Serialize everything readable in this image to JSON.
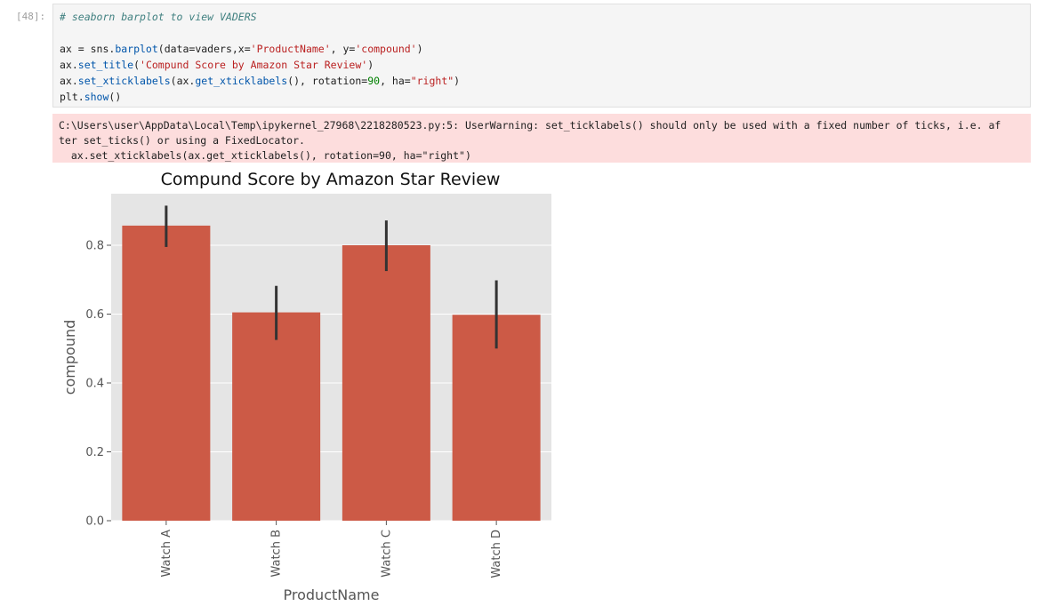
{
  "cell": {
    "prompt": "[48]:",
    "code": {
      "comment": "# seaborn barplot to view VADERS",
      "line1": [
        "ax = sns.",
        "barplot",
        "(data=vaders,x=",
        "'ProductName'",
        ", y=",
        "'compound'",
        ")"
      ],
      "line2": [
        "ax.",
        "set_title",
        "(",
        "'Compund Score by Amazon Star Review'",
        ")"
      ],
      "line3": [
        "ax.",
        "set_xticklabels",
        "(ax.",
        "get_xticklabels",
        "(), rotation=",
        "90",
        ", ha=",
        "\"right\"",
        ")"
      ],
      "line4": [
        "plt.",
        "show",
        "()"
      ]
    }
  },
  "warning": {
    "line1": "C:\\Users\\user\\AppData\\Local\\Temp\\ipykernel_27968\\2218280523.py:5: UserWarning: set_ticklabels() should only be used with a fixed number of ticks, i.e. af",
    "line2": "ter set_ticks() or using a FixedLocator.",
    "line3": "  ax.set_xticklabels(ax.get_xticklabels(), rotation=90, ha=\"right\")"
  },
  "chart_data": {
    "type": "bar",
    "title": "Compund Score by Amazon Star Review",
    "xlabel": "ProductName",
    "ylabel": "compound",
    "categories": [
      "Watch A",
      "Watch B",
      "Watch C",
      "Watch D"
    ],
    "values": [
      0.857,
      0.605,
      0.8,
      0.598
    ],
    "error_low": [
      0.795,
      0.525,
      0.725,
      0.5
    ],
    "error_high": [
      0.915,
      0.682,
      0.872,
      0.698
    ],
    "yticks": [
      "0.0",
      "0.2",
      "0.4",
      "0.6",
      "0.8"
    ],
    "ylim": [
      0,
      0.95
    ],
    "grid": true,
    "bar_color": "#cc5a46",
    "errorbar_color": "#333333",
    "plot_background": "#e5e5e5"
  }
}
